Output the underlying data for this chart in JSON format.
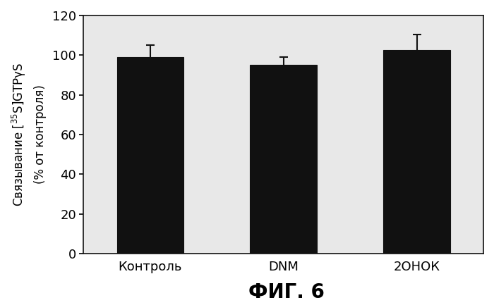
{
  "categories": [
    "Контроль",
    "DNM",
    "2ОНОК"
  ],
  "values": [
    99.0,
    95.0,
    102.5
  ],
  "errors": [
    6.0,
    4.0,
    8.0
  ],
  "bar_color": "#111111",
  "bar_width": 0.5,
  "bar_positions": [
    1,
    2,
    3
  ],
  "ylim": [
    0,
    120
  ],
  "yticks": [
    0,
    20,
    40,
    60,
    80,
    100,
    120
  ],
  "xlabel_fig": "ФИГ. 6",
  "background_color": "#ffffff",
  "plot_bg_color": "#e8e8e8",
  "edge_color": "#111111",
  "error_capsize": 4,
  "error_linewidth": 1.5,
  "error_color": "#111111",
  "tick_fontsize": 13,
  "cat_fontsize": 13,
  "fig_label_fontsize": 20,
  "ylabel_fontsize": 12
}
